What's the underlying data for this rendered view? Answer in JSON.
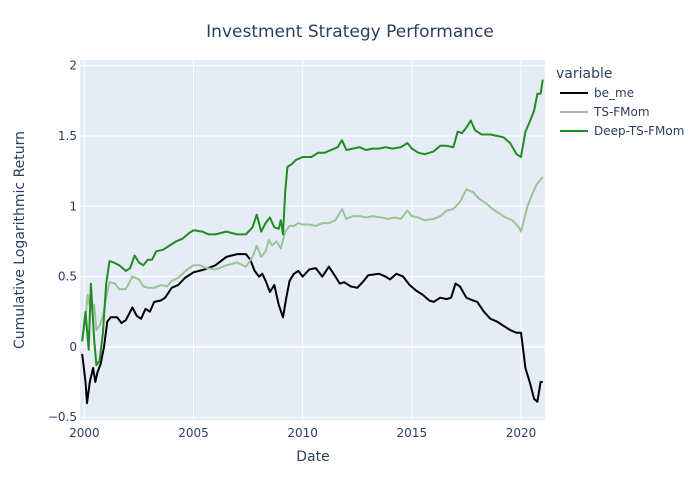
{
  "chart_data": {
    "type": "line",
    "title": "Investment Strategy Performance",
    "xlabel": "Date",
    "ylabel": "Cumulative Logarithmic Return",
    "xlim": [
      1999.8,
      2021.1
    ],
    "ylim": [
      -0.52,
      2.04
    ],
    "xticks": [
      2000,
      2005,
      2010,
      2015,
      2020
    ],
    "xtick_labels": [
      "2000",
      "2005",
      "2010",
      "2015",
      "2020"
    ],
    "yticks": [
      -0.5,
      0,
      0.5,
      1,
      1.5,
      2
    ],
    "ytick_labels": [
      "−0.5",
      "0",
      "0.5",
      "1",
      "1.5",
      "2"
    ],
    "grid": true,
    "legend": {
      "title": "variable",
      "placement": "right"
    },
    "series": [
      {
        "name": "be_me",
        "color": "#000000",
        "points": [
          [
            1999.9,
            -0.05
          ],
          [
            2000.05,
            -0.25
          ],
          [
            2000.12,
            -0.4
          ],
          [
            2000.25,
            -0.25
          ],
          [
            2000.4,
            -0.15
          ],
          [
            2000.5,
            -0.25
          ],
          [
            2000.6,
            -0.18
          ],
          [
            2000.75,
            -0.12
          ],
          [
            2000.9,
            0.0
          ],
          [
            2001.05,
            0.18
          ],
          [
            2001.2,
            0.21
          ],
          [
            2001.5,
            0.21
          ],
          [
            2001.7,
            0.17
          ],
          [
            2001.9,
            0.19
          ],
          [
            2002.2,
            0.28
          ],
          [
            2002.4,
            0.22
          ],
          [
            2002.6,
            0.2
          ],
          [
            2002.8,
            0.27
          ],
          [
            2003.0,
            0.25
          ],
          [
            2003.2,
            0.32
          ],
          [
            2003.5,
            0.33
          ],
          [
            2003.7,
            0.35
          ],
          [
            2004.0,
            0.42
          ],
          [
            2004.3,
            0.44
          ],
          [
            2004.6,
            0.49
          ],
          [
            2005.0,
            0.53
          ],
          [
            2005.5,
            0.55
          ],
          [
            2006.0,
            0.58
          ],
          [
            2006.5,
            0.64
          ],
          [
            2007.0,
            0.66
          ],
          [
            2007.4,
            0.66
          ],
          [
            2007.6,
            0.62
          ],
          [
            2007.8,
            0.54
          ],
          [
            2008.0,
            0.5
          ],
          [
            2008.15,
            0.52
          ],
          [
            2008.3,
            0.47
          ],
          [
            2008.5,
            0.39
          ],
          [
            2008.7,
            0.44
          ],
          [
            2008.9,
            0.3
          ],
          [
            2009.1,
            0.21
          ],
          [
            2009.25,
            0.35
          ],
          [
            2009.4,
            0.47
          ],
          [
            2009.6,
            0.52
          ],
          [
            2009.8,
            0.54
          ],
          [
            2010.0,
            0.5
          ],
          [
            2010.3,
            0.55
          ],
          [
            2010.6,
            0.56
          ],
          [
            2010.9,
            0.5
          ],
          [
            2011.2,
            0.57
          ],
          [
            2011.5,
            0.5
          ],
          [
            2011.7,
            0.45
          ],
          [
            2011.9,
            0.46
          ],
          [
            2012.2,
            0.43
          ],
          [
            2012.5,
            0.42
          ],
          [
            2012.8,
            0.47
          ],
          [
            2013.0,
            0.51
          ],
          [
            2013.5,
            0.52
          ],
          [
            2013.8,
            0.5
          ],
          [
            2014.0,
            0.48
          ],
          [
            2014.3,
            0.52
          ],
          [
            2014.6,
            0.5
          ],
          [
            2014.9,
            0.44
          ],
          [
            2015.2,
            0.4
          ],
          [
            2015.5,
            0.37
          ],
          [
            2015.8,
            0.33
          ],
          [
            2016.0,
            0.32
          ],
          [
            2016.3,
            0.35
          ],
          [
            2016.6,
            0.34
          ],
          [
            2016.8,
            0.35
          ],
          [
            2017.0,
            0.45
          ],
          [
            2017.2,
            0.43
          ],
          [
            2017.5,
            0.35
          ],
          [
            2017.8,
            0.33
          ],
          [
            2018.0,
            0.32
          ],
          [
            2018.3,
            0.25
          ],
          [
            2018.6,
            0.2
          ],
          [
            2018.9,
            0.18
          ],
          [
            2019.2,
            0.15
          ],
          [
            2019.5,
            0.12
          ],
          [
            2019.8,
            0.1
          ],
          [
            2020.0,
            0.1
          ],
          [
            2020.1,
            -0.02
          ],
          [
            2020.2,
            -0.15
          ],
          [
            2020.4,
            -0.25
          ],
          [
            2020.6,
            -0.37
          ],
          [
            2020.75,
            -0.39
          ],
          [
            2020.9,
            -0.25
          ],
          [
            2021.0,
            -0.25
          ]
        ]
      },
      {
        "name": "TS-FMom",
        "color": "#9ac497",
        "points": [
          [
            1999.9,
            0.05
          ],
          [
            2000.05,
            0.2
          ],
          [
            2000.15,
            0.37
          ],
          [
            2000.3,
            0.25
          ],
          [
            2000.45,
            0.3
          ],
          [
            2000.55,
            0.12
          ],
          [
            2000.7,
            0.15
          ],
          [
            2000.85,
            0.22
          ],
          [
            2001.0,
            0.35
          ],
          [
            2001.15,
            0.46
          ],
          [
            2001.4,
            0.45
          ],
          [
            2001.6,
            0.41
          ],
          [
            2001.9,
            0.41
          ],
          [
            2002.2,
            0.5
          ],
          [
            2002.5,
            0.48
          ],
          [
            2002.7,
            0.43
          ],
          [
            2002.9,
            0.42
          ],
          [
            2003.2,
            0.42
          ],
          [
            2003.5,
            0.44
          ],
          [
            2003.8,
            0.43
          ],
          [
            2004.0,
            0.47
          ],
          [
            2004.3,
            0.49
          ],
          [
            2004.7,
            0.55
          ],
          [
            2005.0,
            0.58
          ],
          [
            2005.3,
            0.58
          ],
          [
            2005.6,
            0.56
          ],
          [
            2006.0,
            0.55
          ],
          [
            2006.5,
            0.58
          ],
          [
            2007.0,
            0.6
          ],
          [
            2007.4,
            0.57
          ],
          [
            2007.7,
            0.64
          ],
          [
            2007.9,
            0.72
          ],
          [
            2008.1,
            0.64
          ],
          [
            2008.3,
            0.68
          ],
          [
            2008.45,
            0.76
          ],
          [
            2008.6,
            0.72
          ],
          [
            2008.8,
            0.75
          ],
          [
            2009.0,
            0.7
          ],
          [
            2009.2,
            0.82
          ],
          [
            2009.4,
            0.86
          ],
          [
            2009.6,
            0.86
          ],
          [
            2009.8,
            0.88
          ],
          [
            2010.0,
            0.87
          ],
          [
            2010.3,
            0.87
          ],
          [
            2010.6,
            0.86
          ],
          [
            2010.9,
            0.88
          ],
          [
            2011.2,
            0.88
          ],
          [
            2011.5,
            0.9
          ],
          [
            2011.8,
            0.98
          ],
          [
            2012.0,
            0.91
          ],
          [
            2012.3,
            0.93
          ],
          [
            2012.6,
            0.93
          ],
          [
            2012.9,
            0.92
          ],
          [
            2013.2,
            0.93
          ],
          [
            2013.6,
            0.92
          ],
          [
            2013.9,
            0.91
          ],
          [
            2014.2,
            0.92
          ],
          [
            2014.5,
            0.91
          ],
          [
            2014.8,
            0.97
          ],
          [
            2015.0,
            0.93
          ],
          [
            2015.3,
            0.92
          ],
          [
            2015.6,
            0.9
          ],
          [
            2016.0,
            0.91
          ],
          [
            2016.3,
            0.93
          ],
          [
            2016.6,
            0.97
          ],
          [
            2016.9,
            0.98
          ],
          [
            2017.2,
            1.03
          ],
          [
            2017.5,
            1.12
          ],
          [
            2017.8,
            1.1
          ],
          [
            2018.1,
            1.05
          ],
          [
            2018.4,
            1.02
          ],
          [
            2018.7,
            0.98
          ],
          [
            2019.0,
            0.95
          ],
          [
            2019.3,
            0.92
          ],
          [
            2019.6,
            0.9
          ],
          [
            2019.9,
            0.85
          ],
          [
            2020.0,
            0.82
          ],
          [
            2020.1,
            0.88
          ],
          [
            2020.3,
            1.0
          ],
          [
            2020.5,
            1.08
          ],
          [
            2020.7,
            1.15
          ],
          [
            2020.85,
            1.18
          ],
          [
            2021.0,
            1.21
          ]
        ]
      },
      {
        "name": "Deep-TS-FMom",
        "color": "#228b22",
        "points": [
          [
            1999.9,
            0.04
          ],
          [
            2000.05,
            0.25
          ],
          [
            2000.2,
            -0.02
          ],
          [
            2000.3,
            0.45
          ],
          [
            2000.45,
            0.05
          ],
          [
            2000.55,
            -0.13
          ],
          [
            2000.7,
            -0.1
          ],
          [
            2000.85,
            0.1
          ],
          [
            2001.0,
            0.45
          ],
          [
            2001.15,
            0.61
          ],
          [
            2001.35,
            0.6
          ],
          [
            2001.6,
            0.58
          ],
          [
            2001.9,
            0.54
          ],
          [
            2002.1,
            0.56
          ],
          [
            2002.3,
            0.65
          ],
          [
            2002.5,
            0.6
          ],
          [
            2002.7,
            0.58
          ],
          [
            2002.9,
            0.62
          ],
          [
            2003.1,
            0.62
          ],
          [
            2003.3,
            0.68
          ],
          [
            2003.6,
            0.69
          ],
          [
            2003.9,
            0.72
          ],
          [
            2004.2,
            0.75
          ],
          [
            2004.5,
            0.77
          ],
          [
            2004.8,
            0.81
          ],
          [
            2005.0,
            0.83
          ],
          [
            2005.4,
            0.82
          ],
          [
            2005.7,
            0.8
          ],
          [
            2006.0,
            0.8
          ],
          [
            2006.5,
            0.82
          ],
          [
            2007.0,
            0.8
          ],
          [
            2007.4,
            0.8
          ],
          [
            2007.7,
            0.85
          ],
          [
            2007.9,
            0.94
          ],
          [
            2008.1,
            0.82
          ],
          [
            2008.3,
            0.88
          ],
          [
            2008.5,
            0.92
          ],
          [
            2008.7,
            0.85
          ],
          [
            2008.9,
            0.84
          ],
          [
            2009.0,
            0.9
          ],
          [
            2009.1,
            0.8
          ],
          [
            2009.2,
            1.1
          ],
          [
            2009.3,
            1.28
          ],
          [
            2009.5,
            1.3
          ],
          [
            2009.7,
            1.33
          ],
          [
            2010.0,
            1.35
          ],
          [
            2010.4,
            1.35
          ],
          [
            2010.7,
            1.38
          ],
          [
            2011.0,
            1.38
          ],
          [
            2011.3,
            1.4
          ],
          [
            2011.6,
            1.42
          ],
          [
            2011.8,
            1.47
          ],
          [
            2012.0,
            1.4
          ],
          [
            2012.3,
            1.41
          ],
          [
            2012.6,
            1.42
          ],
          [
            2012.9,
            1.4
          ],
          [
            2013.2,
            1.41
          ],
          [
            2013.5,
            1.41
          ],
          [
            2013.8,
            1.42
          ],
          [
            2014.1,
            1.41
          ],
          [
            2014.5,
            1.42
          ],
          [
            2014.8,
            1.45
          ],
          [
            2015.0,
            1.41
          ],
          [
            2015.3,
            1.38
          ],
          [
            2015.6,
            1.37
          ],
          [
            2016.0,
            1.39
          ],
          [
            2016.3,
            1.43
          ],
          [
            2016.6,
            1.43
          ],
          [
            2016.9,
            1.42
          ],
          [
            2017.1,
            1.53
          ],
          [
            2017.3,
            1.52
          ],
          [
            2017.5,
            1.56
          ],
          [
            2017.7,
            1.61
          ],
          [
            2017.9,
            1.54
          ],
          [
            2018.2,
            1.51
          ],
          [
            2018.6,
            1.51
          ],
          [
            2018.9,
            1.5
          ],
          [
            2019.2,
            1.49
          ],
          [
            2019.5,
            1.45
          ],
          [
            2019.8,
            1.37
          ],
          [
            2020.0,
            1.35
          ],
          [
            2020.2,
            1.53
          ],
          [
            2020.4,
            1.6
          ],
          [
            2020.6,
            1.68
          ],
          [
            2020.75,
            1.8
          ],
          [
            2020.9,
            1.8
          ],
          [
            2021.0,
            1.9
          ]
        ]
      }
    ]
  }
}
